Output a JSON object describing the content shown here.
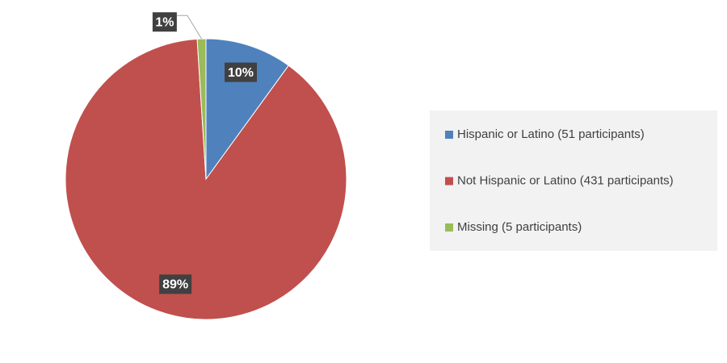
{
  "chart_data": {
    "type": "pie",
    "categories": [
      "Hispanic or Latino (51 participants)",
      "Not Hispanic or Latino (431 participants)",
      "Missing (5 participants)"
    ],
    "values": [
      10,
      89,
      1
    ],
    "value_labels": [
      "10%",
      "89%",
      "1%"
    ],
    "colors": [
      "#4f81bd",
      "#c0504d",
      "#9bbb59"
    ],
    "legend": "right"
  }
}
